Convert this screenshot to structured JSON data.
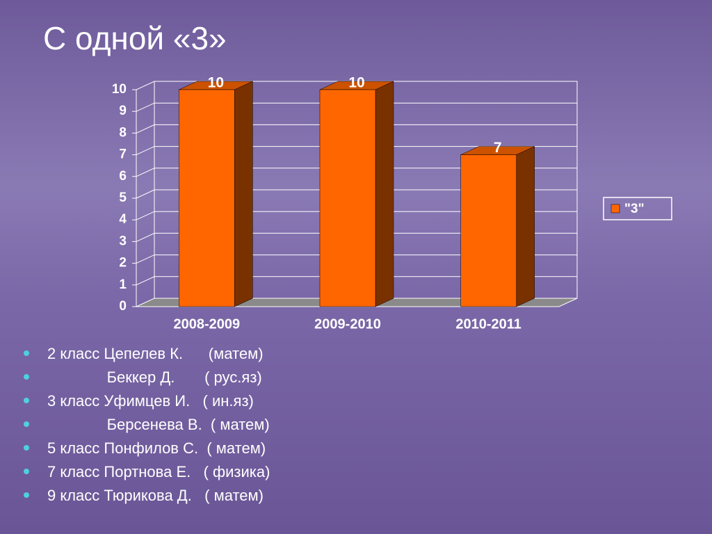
{
  "title": "С одной «3»",
  "chart_data": {
    "type": "bar",
    "categories": [
      "2008-2009",
      "2009-2010",
      "2010-2011"
    ],
    "series": [
      {
        "name": "\"3\"",
        "color": "#ff6600",
        "values": [
          10,
          10,
          7
        ]
      }
    ],
    "ylim": [
      0,
      10
    ],
    "yticks": [
      0,
      1,
      2,
      3,
      4,
      5,
      6,
      7,
      8,
      9,
      10
    ],
    "grid": true,
    "legend": "right"
  },
  "bullets": [
    "2 класс Цепелев К.      (матем)",
    "              Беккер Д.       ( рус.яз)",
    "3 класс Уфимцев И.   ( ин.яз)",
    "              Берсенева В.  ( матем)",
    "5 класс Понфилов С.  ( матем)",
    "7 класс Портнова Е.   ( физика)",
    "9 класс Тюрикова Д.   ( матем)"
  ]
}
